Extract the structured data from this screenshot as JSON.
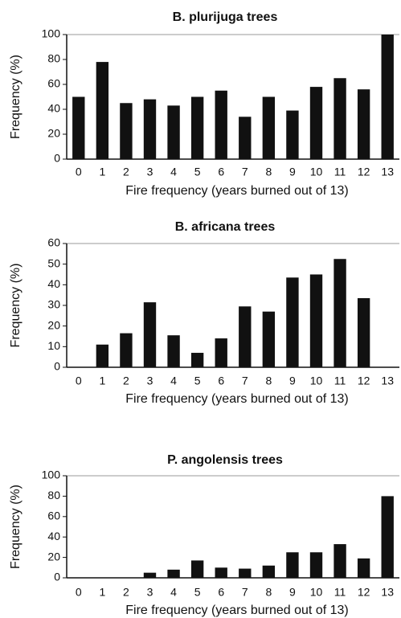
{
  "chart_data": [
    {
      "type": "bar",
      "title": "B. plurijuga trees",
      "x_label": "Fire frequency (years burned out of 13)",
      "y_label": "Frequency (%)",
      "categories": [
        "0",
        "1",
        "2",
        "3",
        "4",
        "5",
        "6",
        "7",
        "8",
        "9",
        "10",
        "11",
        "12",
        "13"
      ],
      "values": [
        50,
        78,
        45,
        48,
        43,
        50,
        55,
        34,
        50,
        39,
        58,
        65,
        56,
        100
      ],
      "color": "#111111",
      "ylim": [
        0,
        100
      ],
      "yticks": [
        0,
        20,
        40,
        60,
        80,
        100
      ]
    },
    {
      "type": "bar",
      "title": "B. africana trees",
      "x_label": "Fire frequency (years burned out of 13)",
      "y_label": "Frequency (%)",
      "categories": [
        "0",
        "1",
        "2",
        "3",
        "4",
        "5",
        "6",
        "7",
        "8",
        "9",
        "10",
        "11",
        "12",
        "13"
      ],
      "values": [
        0,
        11,
        16.5,
        31.5,
        15.5,
        7,
        14,
        29.5,
        27,
        43.5,
        45,
        52.5,
        33.5,
        0
      ],
      "color": "#111111",
      "ylim": [
        0,
        60
      ],
      "yticks": [
        0,
        10,
        20,
        30,
        40,
        50,
        60
      ]
    },
    {
      "type": "bar",
      "title": "P. angolensis trees",
      "x_label": "Fire frequency (years burned out of 13)",
      "y_label": "Frequency (%)",
      "categories": [
        "0",
        "1",
        "2",
        "3",
        "4",
        "5",
        "6",
        "7",
        "8",
        "9",
        "10",
        "11",
        "12",
        "13"
      ],
      "values": [
        0,
        0,
        0,
        5,
        8,
        17,
        10,
        9,
        12,
        25,
        25,
        33,
        19,
        80
      ],
      "color": "#111111",
      "ylim": [
        0,
        100
      ],
      "yticks": [
        0,
        20,
        40,
        60,
        80,
        100
      ]
    }
  ]
}
